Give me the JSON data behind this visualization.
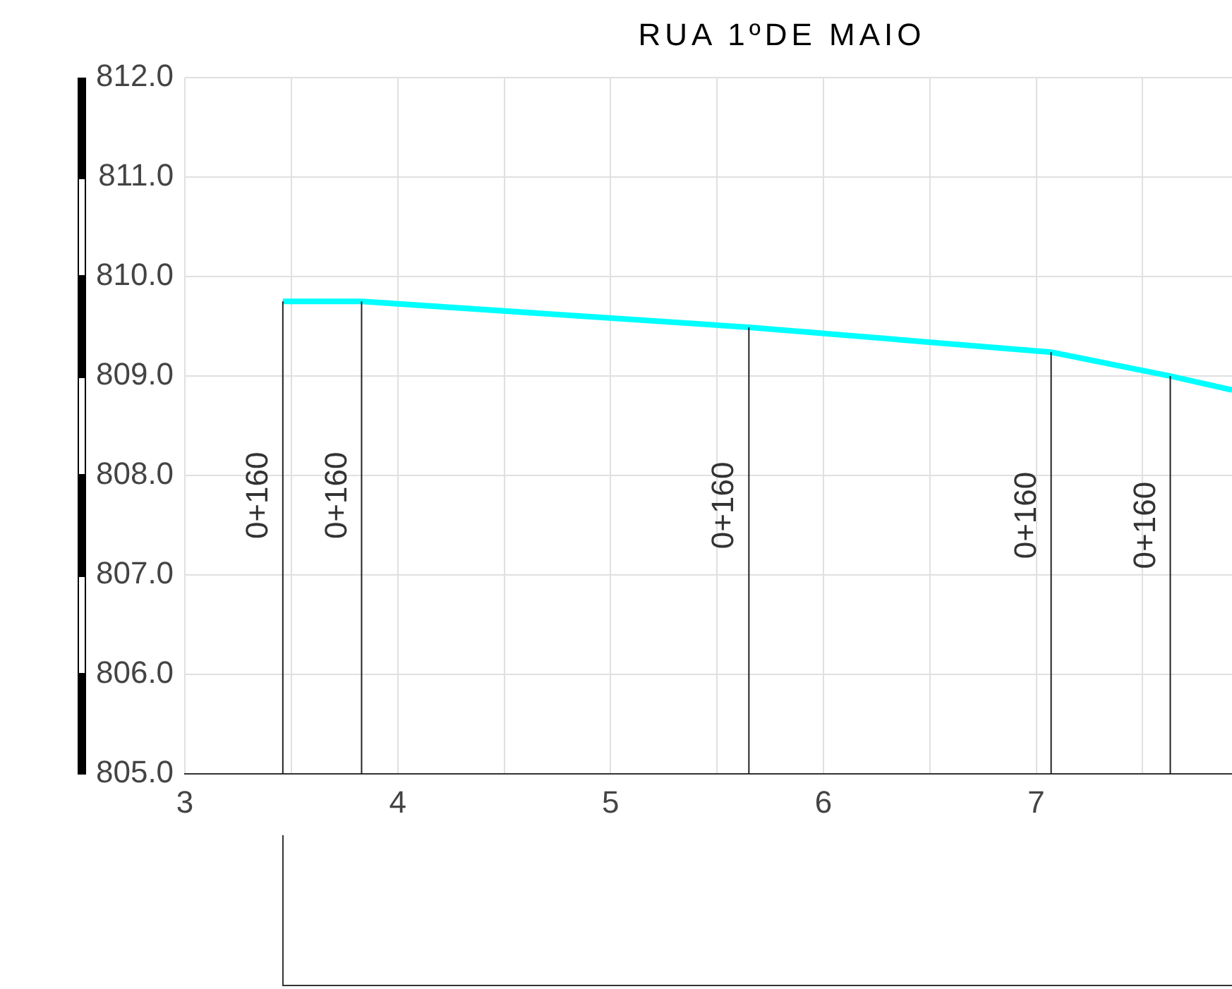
{
  "chart_data": {
    "type": "line",
    "title": "RUA 1ºDE MAIO",
    "x": [
      3.46,
      3.83,
      5.65,
      7.07,
      7.63,
      7.92
    ],
    "series": [
      {
        "color": "#00ffff",
        "values": [
          809.75,
          809.75,
          809.49,
          809.24,
          809.0,
          808.86
        ]
      }
    ],
    "xlim": [
      3,
      7.92
    ],
    "xticks": [
      3,
      {
        "value": 3.5,
        "label": null
      },
      4,
      {
        "value": 4.5,
        "label": null
      },
      5,
      {
        "value": 5.5,
        "label": null
      },
      6,
      {
        "value": 6.5,
        "label": null
      },
      7,
      {
        "value": 7.5,
        "label": null
      }
    ],
    "ylim": [
      805,
      812
    ],
    "yticks": [
      {
        "value": 805,
        "label": "805.0"
      },
      {
        "value": 806,
        "label": "806.0"
      },
      {
        "value": 807,
        "label": "807.0"
      },
      {
        "value": 808,
        "label": "808.0"
      },
      {
        "value": 809,
        "label": "809.0"
      },
      {
        "value": 810,
        "label": "810.0"
      },
      {
        "value": 811,
        "label": "811.0"
      },
      {
        "value": 812,
        "label": "812.0"
      }
    ],
    "ref_lines": [
      {
        "axis": "x",
        "value": 3.46
      },
      {
        "axis": "x",
        "value": 3.83
      },
      {
        "axis": "x",
        "value": 5.65
      },
      {
        "axis": "x",
        "value": 7.07
      },
      {
        "axis": "x",
        "value": 7.63
      }
    ],
    "annotations": [
      {
        "text": "0+160",
        "x": 3.46,
        "y": 807.8
      },
      {
        "text": "0+160",
        "x": 3.83,
        "y": 807.8
      },
      {
        "text": "0+160",
        "x": 5.65,
        "y": 807.7
      },
      {
        "text": "0+160",
        "x": 7.07,
        "y": 807.6
      },
      {
        "text": "0+160",
        "x": 7.63,
        "y": 807.5
      }
    ],
    "grid": true,
    "legend": false,
    "marker": "none",
    "line_style": "solid"
  }
}
